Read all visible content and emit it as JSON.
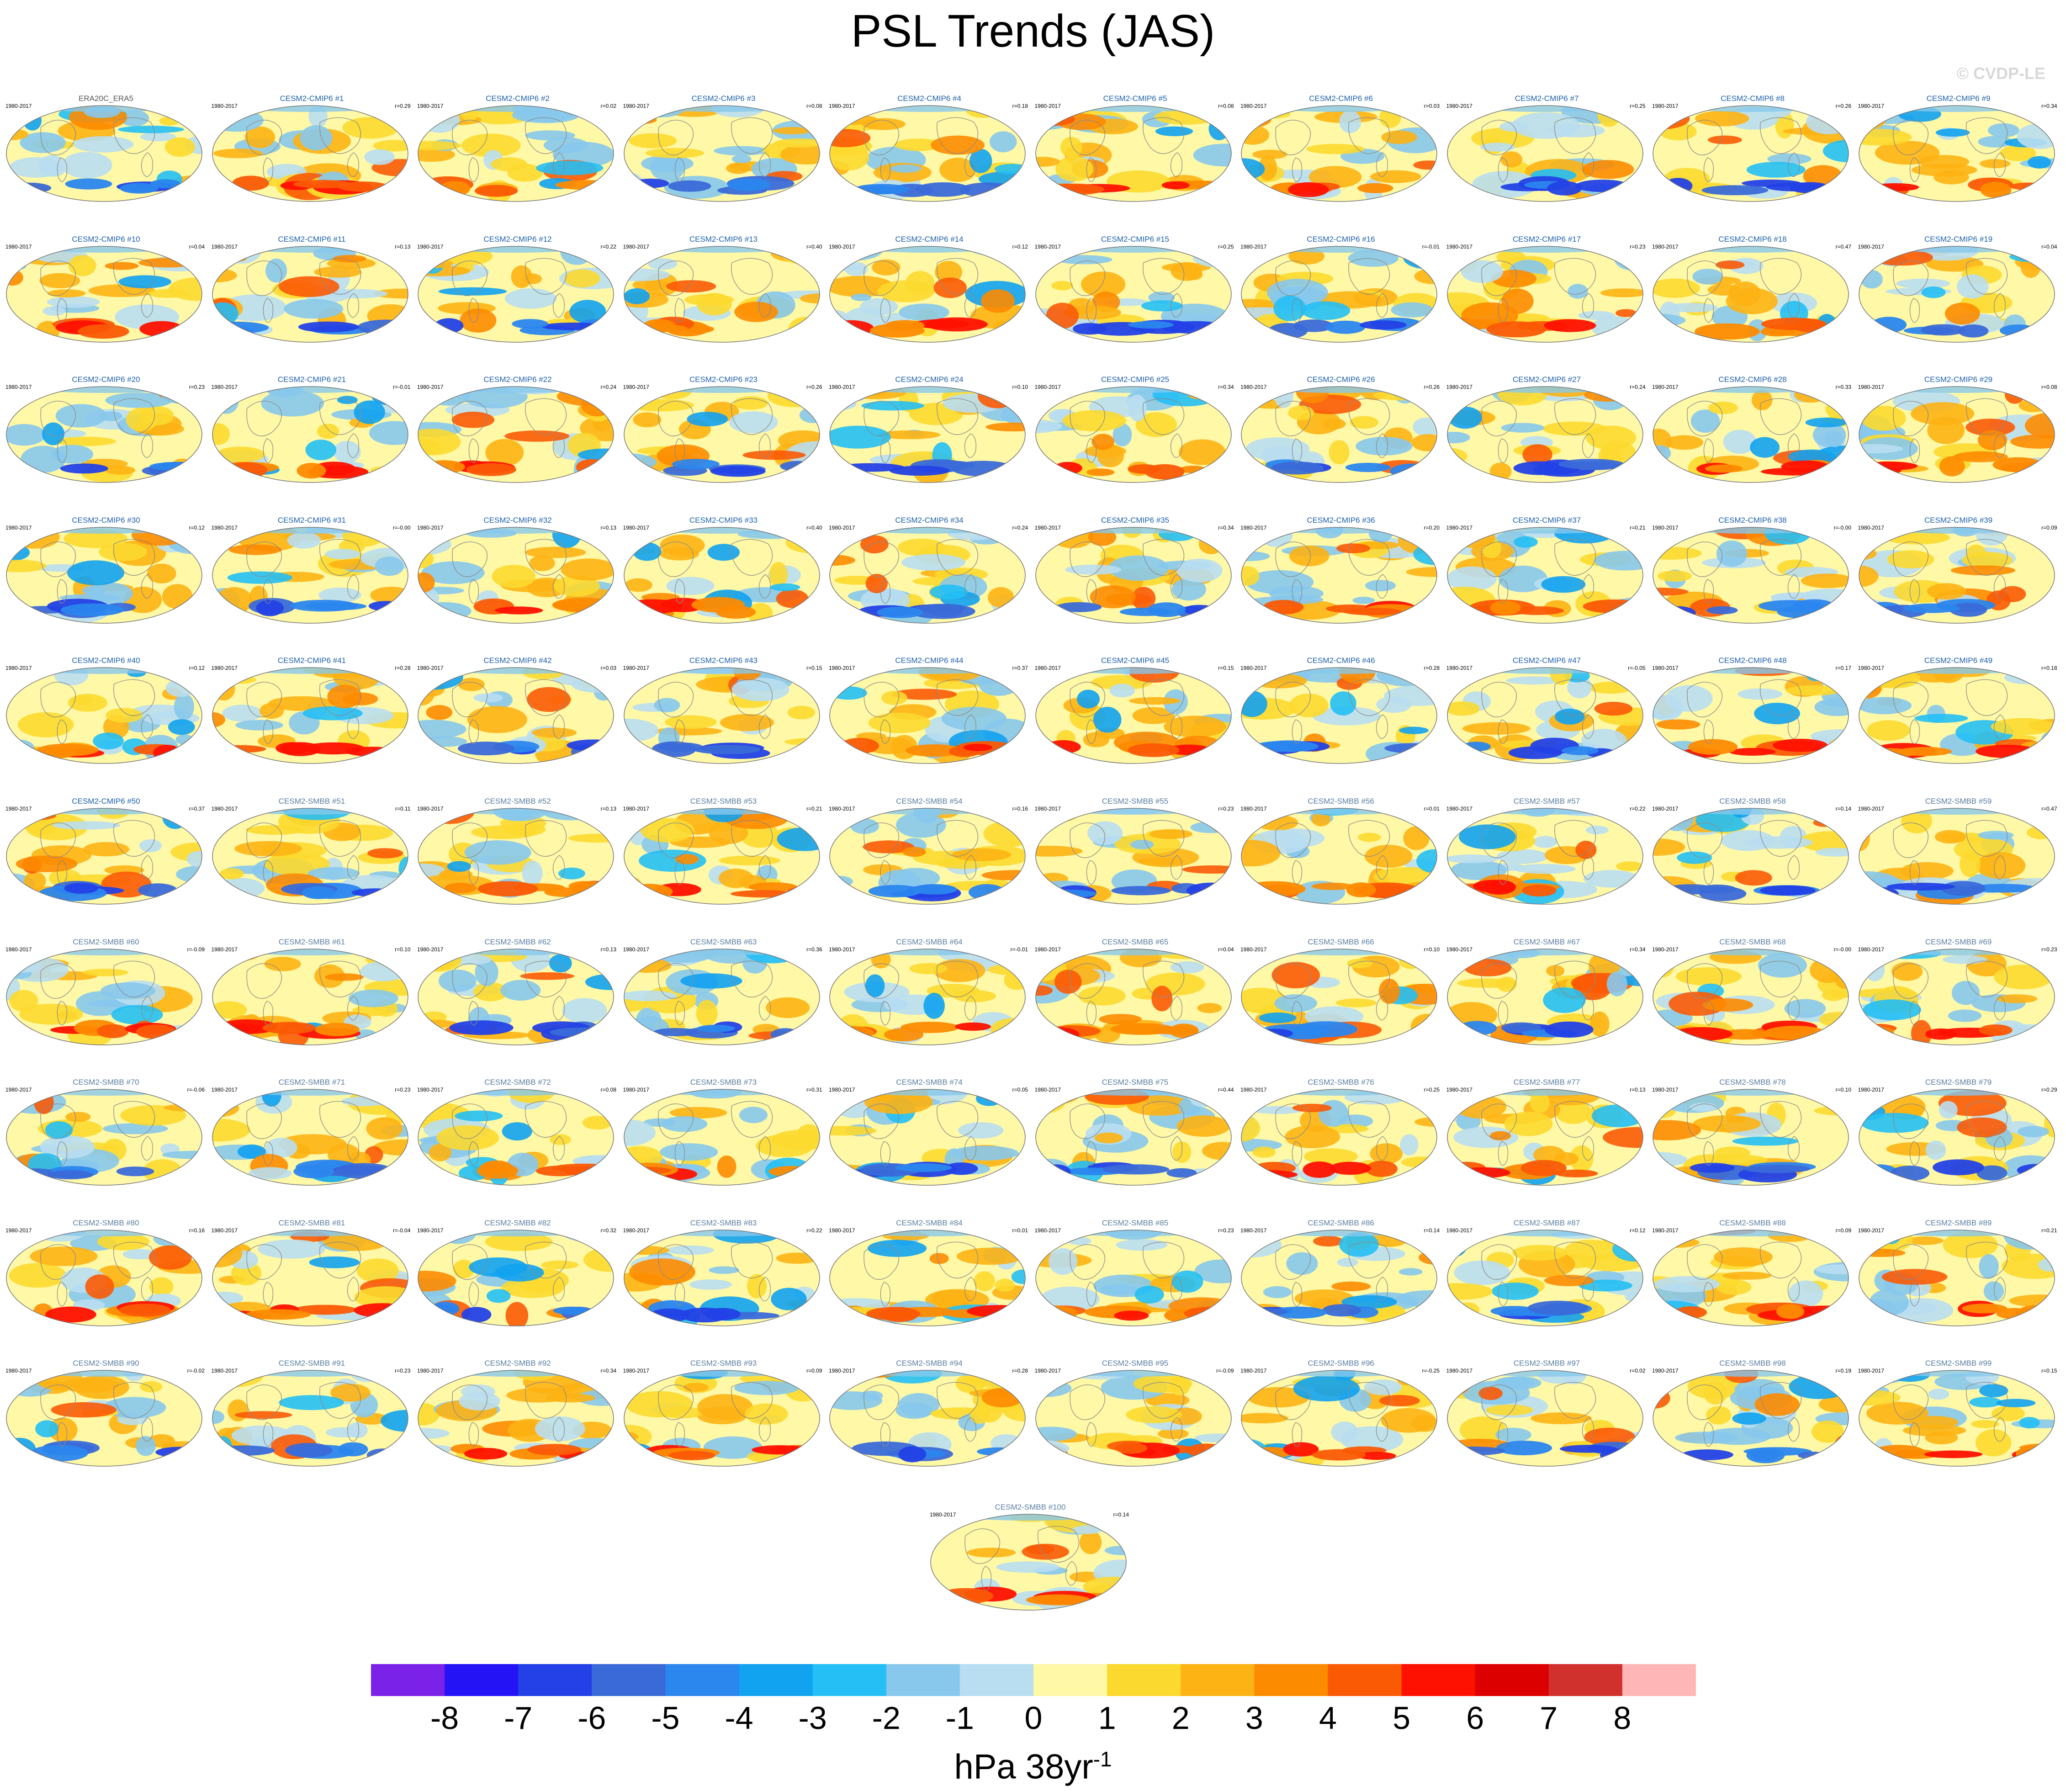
{
  "title": "PSL Trends (JAS)",
  "watermark": "© CVDP-LE",
  "chart_data": {
    "type": "heatmap",
    "title": "PSL Trends (JAS)",
    "period": "1980-2017",
    "units_main": "hPa 38yr",
    "units_exponent": "-1",
    "colorbar": {
      "levels": [
        -8,
        -7,
        -6,
        -5,
        -4,
        -3,
        -2,
        -1,
        0,
        1,
        2,
        3,
        4,
        5,
        6,
        7,
        8
      ],
      "colors": [
        "#7b22e8",
        "#2414f5",
        "#2341e6",
        "#3a6ad8",
        "#2b86ee",
        "#11a2f0",
        "#25bff5",
        "#87c8ec",
        "#b9def1",
        "#fff8a6",
        "#fcd92f",
        "#fdb313",
        "#fd8b00",
        "#fb5a05",
        "#ff1100",
        "#dd0000",
        "#d1312d",
        "#ffb6b6"
      ]
    },
    "panels": [
      {
        "title": "ERA20C_ERA5",
        "years": "1980-2017",
        "r": ""
      },
      {
        "title": "CESM2-CMIP6 #1",
        "years": "1980-2017",
        "r": "r=0.29"
      },
      {
        "title": "CESM2-CMIP6 #2",
        "years": "1980-2017",
        "r": "r=0.02"
      },
      {
        "title": "CESM2-CMIP6 #3",
        "years": "1980-2017",
        "r": "r=0.08"
      },
      {
        "title": "CESM2-CMIP6 #4",
        "years": "1980-2017",
        "r": "r=0.18"
      },
      {
        "title": "CESM2-CMIP6 #5",
        "years": "1980-2017",
        "r": "r=0.08"
      },
      {
        "title": "CESM2-CMIP6 #6",
        "years": "1980-2017",
        "r": "r=0.03"
      },
      {
        "title": "CESM2-CMIP6 #7",
        "years": "1980-2017",
        "r": "r=0.25"
      },
      {
        "title": "CESM2-CMIP6 #8",
        "years": "1980-2017",
        "r": "r=0.26"
      },
      {
        "title": "CESM2-CMIP6 #9",
        "years": "1980-2017",
        "r": "r=0.34"
      },
      {
        "title": "CESM2-CMIP6 #10",
        "years": "1980-2017",
        "r": "r=0.04"
      },
      {
        "title": "CESM2-CMIP6 #11",
        "years": "1980-2017",
        "r": "r=0.13"
      },
      {
        "title": "CESM2-CMIP6 #12",
        "years": "1980-2017",
        "r": "r=0.22"
      },
      {
        "title": "CESM2-CMIP6 #13",
        "years": "1980-2017",
        "r": "r=0.40"
      },
      {
        "title": "CESM2-CMIP6 #14",
        "years": "1980-2017",
        "r": "r=0.12"
      },
      {
        "title": "CESM2-CMIP6 #15",
        "years": "1980-2017",
        "r": "r=0.25"
      },
      {
        "title": "CESM2-CMIP6 #16",
        "years": "1980-2017",
        "r": "r=-0.01"
      },
      {
        "title": "CESM2-CMIP6 #17",
        "years": "1980-2017",
        "r": "r=0.23"
      },
      {
        "title": "CESM2-CMIP6 #18",
        "years": "1980-2017",
        "r": "r=0.47"
      },
      {
        "title": "CESM2-CMIP6 #19",
        "years": "1980-2017",
        "r": "r=0.04"
      },
      {
        "title": "CESM2-CMIP6 #20",
        "years": "1980-2017",
        "r": "r=0.23"
      },
      {
        "title": "CESM2-CMIP6 #21",
        "years": "1980-2017",
        "r": "r=-0.01"
      },
      {
        "title": "CESM2-CMIP6 #22",
        "years": "1980-2017",
        "r": "r=0.24"
      },
      {
        "title": "CESM2-CMIP6 #23",
        "years": "1980-2017",
        "r": "r=0.26"
      },
      {
        "title": "CESM2-CMIP6 #24",
        "years": "1980-2017",
        "r": "r=0.10"
      },
      {
        "title": "CESM2-CMIP6 #25",
        "years": "1980-2017",
        "r": "r=0.34"
      },
      {
        "title": "CESM2-CMIP6 #26",
        "years": "1980-2017",
        "r": "r=0.26"
      },
      {
        "title": "CESM2-CMIP6 #27",
        "years": "1980-2017",
        "r": "r=0.24"
      },
      {
        "title": "CESM2-CMIP6 #28",
        "years": "1980-2017",
        "r": "r=0.33"
      },
      {
        "title": "CESM2-CMIP6 #29",
        "years": "1980-2017",
        "r": "r=0.08"
      },
      {
        "title": "CESM2-CMIP6 #30",
        "years": "1980-2017",
        "r": "r=0.12"
      },
      {
        "title": "CESM2-CMIP6 #31",
        "years": "1980-2017",
        "r": "r=-0.00"
      },
      {
        "title": "CESM2-CMIP6 #32",
        "years": "1980-2017",
        "r": "r=0.13"
      },
      {
        "title": "CESM2-CMIP6 #33",
        "years": "1980-2017",
        "r": "r=0.40"
      },
      {
        "title": "CESM2-CMIP6 #34",
        "years": "1980-2017",
        "r": "r=0.24"
      },
      {
        "title": "CESM2-CMIP6 #35",
        "years": "1980-2017",
        "r": "r=0.34"
      },
      {
        "title": "CESM2-CMIP6 #36",
        "years": "1980-2017",
        "r": "r=0.20"
      },
      {
        "title": "CESM2-CMIP6 #37",
        "years": "1980-2017",
        "r": "r=0.21"
      },
      {
        "title": "CESM2-CMIP6 #38",
        "years": "1980-2017",
        "r": "r=-0.00"
      },
      {
        "title": "CESM2-CMIP6 #39",
        "years": "1980-2017",
        "r": "r=0.09"
      },
      {
        "title": "CESM2-CMIP6 #40",
        "years": "1980-2017",
        "r": "r=0.12"
      },
      {
        "title": "CESM2-CMIP6 #41",
        "years": "1980-2017",
        "r": "r=0.28"
      },
      {
        "title": "CESM2-CMIP6 #42",
        "years": "1980-2017",
        "r": "r=0.03"
      },
      {
        "title": "CESM2-CMIP6 #43",
        "years": "1980-2017",
        "r": "r=0.15"
      },
      {
        "title": "CESM2-CMIP6 #44",
        "years": "1980-2017",
        "r": "r=0.37"
      },
      {
        "title": "CESM2-CMIP6 #45",
        "years": "1980-2017",
        "r": "r=0.15"
      },
      {
        "title": "CESM2-CMIP6 #46",
        "years": "1980-2017",
        "r": "r=0.28"
      },
      {
        "title": "CESM2-CMIP6 #47",
        "years": "1980-2017",
        "r": "r=-0.05"
      },
      {
        "title": "CESM2-CMIP6 #48",
        "years": "1980-2017",
        "r": "r=0.17"
      },
      {
        "title": "CESM2-CMIP6 #49",
        "years": "1980-2017",
        "r": "r=0.18"
      },
      {
        "title": "CESM2-CMIP6 #50",
        "years": "1980-2017",
        "r": "r=0.37"
      },
      {
        "title": "CESM2-SMBB #51",
        "years": "1980-2017",
        "r": "r=0.11"
      },
      {
        "title": "CESM2-SMBB #52",
        "years": "1980-2017",
        "r": "r=0.13"
      },
      {
        "title": "CESM2-SMBB #53",
        "years": "1980-2017",
        "r": "r=0.21"
      },
      {
        "title": "CESM2-SMBB #54",
        "years": "1980-2017",
        "r": "r=0.16"
      },
      {
        "title": "CESM2-SMBB #55",
        "years": "1980-2017",
        "r": "r=0.23"
      },
      {
        "title": "CESM2-SMBB #56",
        "years": "1980-2017",
        "r": "r=0.01"
      },
      {
        "title": "CESM2-SMBB #57",
        "years": "1980-2017",
        "r": "r=0.22"
      },
      {
        "title": "CESM2-SMBB #58",
        "years": "1980-2017",
        "r": "r=0.14"
      },
      {
        "title": "CESM2-SMBB #59",
        "years": "1980-2017",
        "r": "r=0.47"
      },
      {
        "title": "CESM2-SMBB #60",
        "years": "1980-2017",
        "r": "r=-0.09"
      },
      {
        "title": "CESM2-SMBB #61",
        "years": "1980-2017",
        "r": "r=0.10"
      },
      {
        "title": "CESM2-SMBB #62",
        "years": "1980-2017",
        "r": "r=0.13"
      },
      {
        "title": "CESM2-SMBB #63",
        "years": "1980-2017",
        "r": "r=0.36"
      },
      {
        "title": "CESM2-SMBB #64",
        "years": "1980-2017",
        "r": "r=-0.01"
      },
      {
        "title": "CESM2-SMBB #65",
        "years": "1980-2017",
        "r": "r=0.04"
      },
      {
        "title": "CESM2-SMBB #66",
        "years": "1980-2017",
        "r": "r=0.10"
      },
      {
        "title": "CESM2-SMBB #67",
        "years": "1980-2017",
        "r": "r=0.34"
      },
      {
        "title": "CESM2-SMBB #68",
        "years": "1980-2017",
        "r": "r=-0.00"
      },
      {
        "title": "CESM2-SMBB #69",
        "years": "1980-2017",
        "r": "r=0.23"
      },
      {
        "title": "CESM2-SMBB #70",
        "years": "1980-2017",
        "r": "r=-0.06"
      },
      {
        "title": "CESM2-SMBB #71",
        "years": "1980-2017",
        "r": "r=0.23"
      },
      {
        "title": "CESM2-SMBB #72",
        "years": "1980-2017",
        "r": "r=0.08"
      },
      {
        "title": "CESM2-SMBB #73",
        "years": "1980-2017",
        "r": "r=0.31"
      },
      {
        "title": "CESM2-SMBB #74",
        "years": "1980-2017",
        "r": "r=0.05"
      },
      {
        "title": "CESM2-SMBB #75",
        "years": "1980-2017",
        "r": "r=0.44"
      },
      {
        "title": "CESM2-SMBB #76",
        "years": "1980-2017",
        "r": "r=0.25"
      },
      {
        "title": "CESM2-SMBB #77",
        "years": "1980-2017",
        "r": "r=0.13"
      },
      {
        "title": "CESM2-SMBB #78",
        "years": "1980-2017",
        "r": "r=0.10"
      },
      {
        "title": "CESM2-SMBB #79",
        "years": "1980-2017",
        "r": "r=0.29"
      },
      {
        "title": "CESM2-SMBB #80",
        "years": "1980-2017",
        "r": "r=0.16"
      },
      {
        "title": "CESM2-SMBB #81",
        "years": "1980-2017",
        "r": "r=-0.04"
      },
      {
        "title": "CESM2-SMBB #82",
        "years": "1980-2017",
        "r": "r=0.32"
      },
      {
        "title": "CESM2-SMBB #83",
        "years": "1980-2017",
        "r": "r=0.22"
      },
      {
        "title": "CESM2-SMBB #84",
        "years": "1980-2017",
        "r": "r=0.01"
      },
      {
        "title": "CESM2-SMBB #85",
        "years": "1980-2017",
        "r": "r=0.23"
      },
      {
        "title": "CESM2-SMBB #86",
        "years": "1980-2017",
        "r": "r=0.14"
      },
      {
        "title": "CESM2-SMBB #87",
        "years": "1980-2017",
        "r": "r=0.12"
      },
      {
        "title": "CESM2-SMBB #88",
        "years": "1980-2017",
        "r": "r=0.09"
      },
      {
        "title": "CESM2-SMBB #89",
        "years": "1980-2017",
        "r": "r=0.21"
      },
      {
        "title": "CESM2-SMBB #90",
        "years": "1980-2017",
        "r": "r=-0.02"
      },
      {
        "title": "CESM2-SMBB #91",
        "years": "1980-2017",
        "r": "r=0.23"
      },
      {
        "title": "CESM2-SMBB #92",
        "years": "1980-2017",
        "r": "r=0.34"
      },
      {
        "title": "CESM2-SMBB #93",
        "years": "1980-2017",
        "r": "r=0.09"
      },
      {
        "title": "CESM2-SMBB #94",
        "years": "1980-2017",
        "r": "r=0.28"
      },
      {
        "title": "CESM2-SMBB #95",
        "years": "1980-2017",
        "r": "r=-0.09"
      },
      {
        "title": "CESM2-SMBB #96",
        "years": "1980-2017",
        "r": "r=-0.25"
      },
      {
        "title": "CESM2-SMBB #97",
        "years": "1980-2017",
        "r": "r=0.02"
      },
      {
        "title": "CESM2-SMBB #98",
        "years": "1980-2017",
        "r": "r=0.19"
      },
      {
        "title": "CESM2-SMBB #99",
        "years": "1980-2017",
        "r": "r=0.15"
      },
      {
        "title": "CESM2-SMBB #100",
        "years": "1980-2017",
        "r": "r=0.14"
      }
    ]
  }
}
